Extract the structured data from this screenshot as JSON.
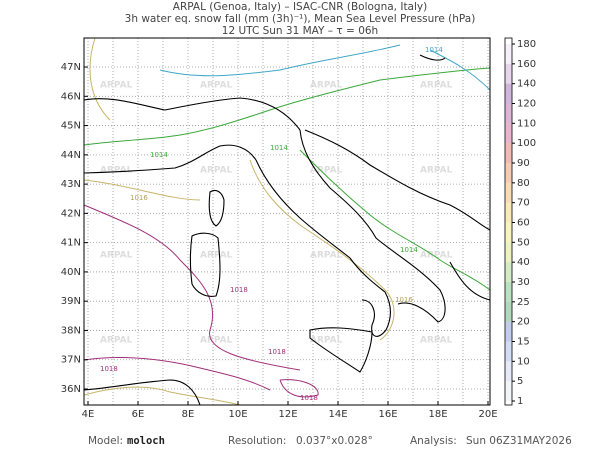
{
  "header": {
    "lines": [
      "ARPAL (Genoa, Italy)  –  ISAC-CNR (Bologna, Italy)",
      "3h water eq. snow fall (mm (3h)⁻¹), Mean Sea Level Pressure (hPa)",
      "12 UTC Sun 31 MAY   –   τ = 06h"
    ]
  },
  "map": {
    "x_labels": [
      "4E",
      "6E",
      "8E",
      "10E",
      "12E",
      "14E",
      "16E",
      "18E",
      "20E"
    ],
    "y_labels": [
      "36N",
      "37N",
      "38N",
      "39N",
      "40N",
      "41N",
      "42N",
      "43N",
      "44N",
      "45N",
      "46N",
      "47N"
    ],
    "contour_labels": [
      "1014",
      "1016",
      "1018"
    ],
    "watermark": "ARPAL"
  },
  "colorbar": {
    "levels": [
      1,
      5,
      10,
      15,
      20,
      25,
      30,
      40,
      50,
      60,
      70,
      80,
      90,
      100,
      110,
      120,
      140,
      160,
      180
    ],
    "colors": [
      "#dcdcf2",
      "#b4c3ea",
      "#7f9ade",
      "#4f70cc",
      "#1f8f3f",
      "#38ad4c",
      "#82c95a",
      "#c8d94a",
      "#efe03c",
      "#f0c232",
      "#ec9a2c",
      "#e36a24",
      "#d43c2c",
      "#c02c6c",
      "#9e2a8e",
      "#7a2c9e",
      "#b98ac9",
      "#e6d6ee"
    ]
  },
  "footer": {
    "model_label": "Model:",
    "model": "moloch",
    "resolution_label": "Resolution:",
    "resolution": "0.037°x0.028°",
    "analysis_label": "Analysis:",
    "analysis": "Sun 06Z31MAY2026"
  }
}
